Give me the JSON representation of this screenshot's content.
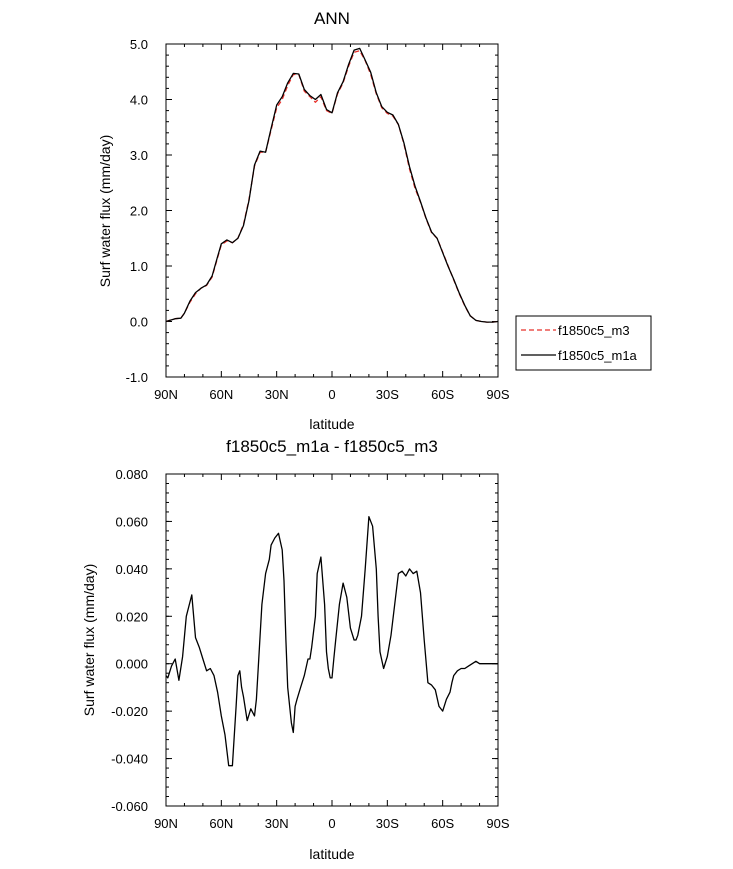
{
  "chart_data": [
    {
      "type": "line",
      "title": "ANN",
      "xlabel": "latitude",
      "ylabel": "Surf water flux (mm/day)",
      "xlim": [
        90,
        -90
      ],
      "ylim": [
        -1.0,
        5.0
      ],
      "x_ticks": [
        {
          "value": 90,
          "label": "90N"
        },
        {
          "value": 60,
          "label": "60N"
        },
        {
          "value": 30,
          "label": "30N"
        },
        {
          "value": 0,
          "label": "0"
        },
        {
          "value": -30,
          "label": "30S"
        },
        {
          "value": -60,
          "label": "60S"
        },
        {
          "value": -90,
          "label": "90S"
        }
      ],
      "y_ticks": [
        {
          "value": -1.0,
          "label": "-1.0"
        },
        {
          "value": 0.0,
          "label": "0.0"
        },
        {
          "value": 1.0,
          "label": "1.0"
        },
        {
          "value": 2.0,
          "label": "2.0"
        },
        {
          "value": 3.0,
          "label": "3.0"
        },
        {
          "value": 4.0,
          "label": "4.0"
        },
        {
          "value": 5.0,
          "label": "5.0"
        }
      ],
      "legend_position": "outside-right",
      "series": [
        {
          "name": "f1850c5_m3",
          "color": "#e8302a",
          "dash": "dashed",
          "x": [
            90,
            85,
            82,
            80,
            77,
            74,
            71,
            68,
            65,
            62,
            60,
            57,
            54,
            51,
            48,
            45,
            42,
            39,
            36,
            33,
            30,
            27,
            24,
            21,
            18,
            15,
            12,
            9,
            6,
            3,
            0,
            -3,
            -6,
            -9,
            -12,
            -15,
            -18,
            -21,
            -24,
            -27,
            -30,
            -33,
            -36,
            -39,
            -42,
            -45,
            -48,
            -51,
            -54,
            -57,
            -60,
            -63,
            -66,
            -69,
            -72,
            -75,
            -78,
            -81,
            -84,
            -87,
            -90
          ],
          "y": [
            0.0,
            0.05,
            0.06,
            0.15,
            0.35,
            0.5,
            0.6,
            0.65,
            0.8,
            1.15,
            1.38,
            1.45,
            1.42,
            1.5,
            1.75,
            2.2,
            2.8,
            3.05,
            3.05,
            3.45,
            3.85,
            4.0,
            4.25,
            4.45,
            4.45,
            4.15,
            4.05,
            3.95,
            4.05,
            3.8,
            3.75,
            4.1,
            4.3,
            4.6,
            4.85,
            4.88,
            4.7,
            4.45,
            4.1,
            3.85,
            3.75,
            3.7,
            3.55,
            3.2,
            2.75,
            2.4,
            2.15,
            1.85,
            1.6,
            1.5,
            1.25,
            1.0,
            0.75,
            0.5,
            0.28,
            0.1,
            0.02,
            0.0,
            -0.01,
            -0.01,
            0.0
          ]
        },
        {
          "name": "f1850c5_m1a",
          "color": "#000000",
          "dash": "solid",
          "x": [
            90,
            85,
            82,
            80,
            77,
            74,
            71,
            68,
            65,
            62,
            60,
            57,
            54,
            51,
            48,
            45,
            42,
            39,
            36,
            33,
            30,
            27,
            24,
            21,
            18,
            15,
            12,
            9,
            6,
            3,
            0,
            -3,
            -6,
            -9,
            -12,
            -15,
            -18,
            -21,
            -24,
            -27,
            -30,
            -33,
            -36,
            -39,
            -42,
            -45,
            -48,
            -51,
            -54,
            -57,
            -60,
            -63,
            -66,
            -69,
            -72,
            -75,
            -78,
            -81,
            -84,
            -87,
            -90
          ],
          "y": [
            0.0,
            0.05,
            0.06,
            0.15,
            0.37,
            0.52,
            0.6,
            0.66,
            0.82,
            1.17,
            1.4,
            1.47,
            1.42,
            1.5,
            1.73,
            2.18,
            2.82,
            3.07,
            3.05,
            3.48,
            3.9,
            4.05,
            4.3,
            4.47,
            4.46,
            4.18,
            4.07,
            4.0,
            4.09,
            3.82,
            3.76,
            4.12,
            4.32,
            4.63,
            4.89,
            4.92,
            4.71,
            4.49,
            4.12,
            3.87,
            3.77,
            3.72,
            3.55,
            3.22,
            2.79,
            2.44,
            2.16,
            1.86,
            1.61,
            1.5,
            1.24,
            0.99,
            0.76,
            0.51,
            0.29,
            0.1,
            0.02,
            0.0,
            -0.01,
            -0.01,
            0.0
          ]
        }
      ]
    },
    {
      "type": "line",
      "title": "f1850c5_m1a - f1850c5_m3",
      "xlabel": "latitude",
      "ylabel": "Surf water flux (mm/day)",
      "xlim": [
        90,
        -90
      ],
      "ylim": [
        -0.06,
        0.08
      ],
      "x_ticks": [
        {
          "value": 90,
          "label": "90N"
        },
        {
          "value": 60,
          "label": "60N"
        },
        {
          "value": 30,
          "label": "30N"
        },
        {
          "value": 0,
          "label": "0"
        },
        {
          "value": -30,
          "label": "30S"
        },
        {
          "value": -60,
          "label": "60S"
        },
        {
          "value": -90,
          "label": "90S"
        }
      ],
      "y_ticks": [
        {
          "value": -0.06,
          "label": "-0.060"
        },
        {
          "value": -0.04,
          "label": "-0.040"
        },
        {
          "value": -0.02,
          "label": "-0.020"
        },
        {
          "value": 0.0,
          "label": "0.000"
        },
        {
          "value": 0.02,
          "label": "0.020"
        },
        {
          "value": 0.04,
          "label": "0.040"
        },
        {
          "value": 0.06,
          "label": "0.060"
        },
        {
          "value": 0.08,
          "label": "0.080"
        }
      ],
      "series": [
        {
          "color": "#000000",
          "dash": "solid",
          "x": [
            90,
            89,
            87,
            85,
            83,
            81,
            79,
            76,
            74,
            72,
            70,
            68,
            66,
            64,
            62,
            60,
            58,
            56,
            54,
            52,
            51,
            50,
            49,
            48,
            46,
            44,
            42,
            41,
            40,
            38,
            36,
            34,
            33,
            31,
            29,
            27,
            26,
            25,
            24,
            22,
            21,
            20,
            19,
            17,
            15,
            13,
            12,
            11,
            9,
            8,
            6,
            4,
            3,
            2,
            1,
            0,
            -1,
            -2,
            -4,
            -6,
            -8,
            -10,
            -12,
            -13,
            -14,
            -16,
            -18,
            -20,
            -22,
            -24,
            -25,
            -26,
            -28,
            -30,
            -32,
            -34,
            -36,
            -38,
            -40,
            -42,
            -44,
            -46,
            -48,
            -50,
            -52,
            -54,
            -56,
            -58,
            -60,
            -62,
            -64,
            -65,
            -66,
            -68,
            -70,
            -72,
            -74,
            -76,
            -78,
            -80,
            -82,
            -84,
            -86,
            -88,
            -90
          ],
          "y": [
            -0.005,
            -0.006,
            -0.001,
            0.002,
            -0.007,
            0.003,
            0.02,
            0.029,
            0.011,
            0.007,
            0.002,
            -0.003,
            -0.002,
            -0.005,
            -0.012,
            -0.022,
            -0.03,
            -0.043,
            -0.043,
            -0.018,
            -0.005,
            -0.003,
            -0.01,
            -0.014,
            -0.024,
            -0.019,
            -0.022,
            -0.015,
            -0.002,
            0.025,
            0.038,
            0.044,
            0.05,
            0.053,
            0.055,
            0.048,
            0.035,
            0.01,
            -0.01,
            -0.025,
            -0.029,
            -0.018,
            -0.015,
            -0.01,
            -0.005,
            0.002,
            0.002,
            0.007,
            0.02,
            0.038,
            0.045,
            0.025,
            0.005,
            -0.002,
            -0.006,
            -0.006,
            0.002,
            0.01,
            0.025,
            0.034,
            0.028,
            0.015,
            0.01,
            0.01,
            0.012,
            0.02,
            0.04,
            0.062,
            0.058,
            0.04,
            0.02,
            0.005,
            -0.002,
            0.003,
            0.012,
            0.025,
            0.038,
            0.039,
            0.037,
            0.04,
            0.038,
            0.039,
            0.03,
            0.01,
            -0.008,
            -0.009,
            -0.011,
            -0.018,
            -0.02,
            -0.015,
            -0.012,
            -0.008,
            -0.005,
            -0.003,
            -0.002,
            -0.002,
            -0.001,
            0.0,
            0.001,
            0.0,
            0.0,
            0.0,
            0.0,
            0.0,
            0.0
          ]
        }
      ]
    }
  ]
}
